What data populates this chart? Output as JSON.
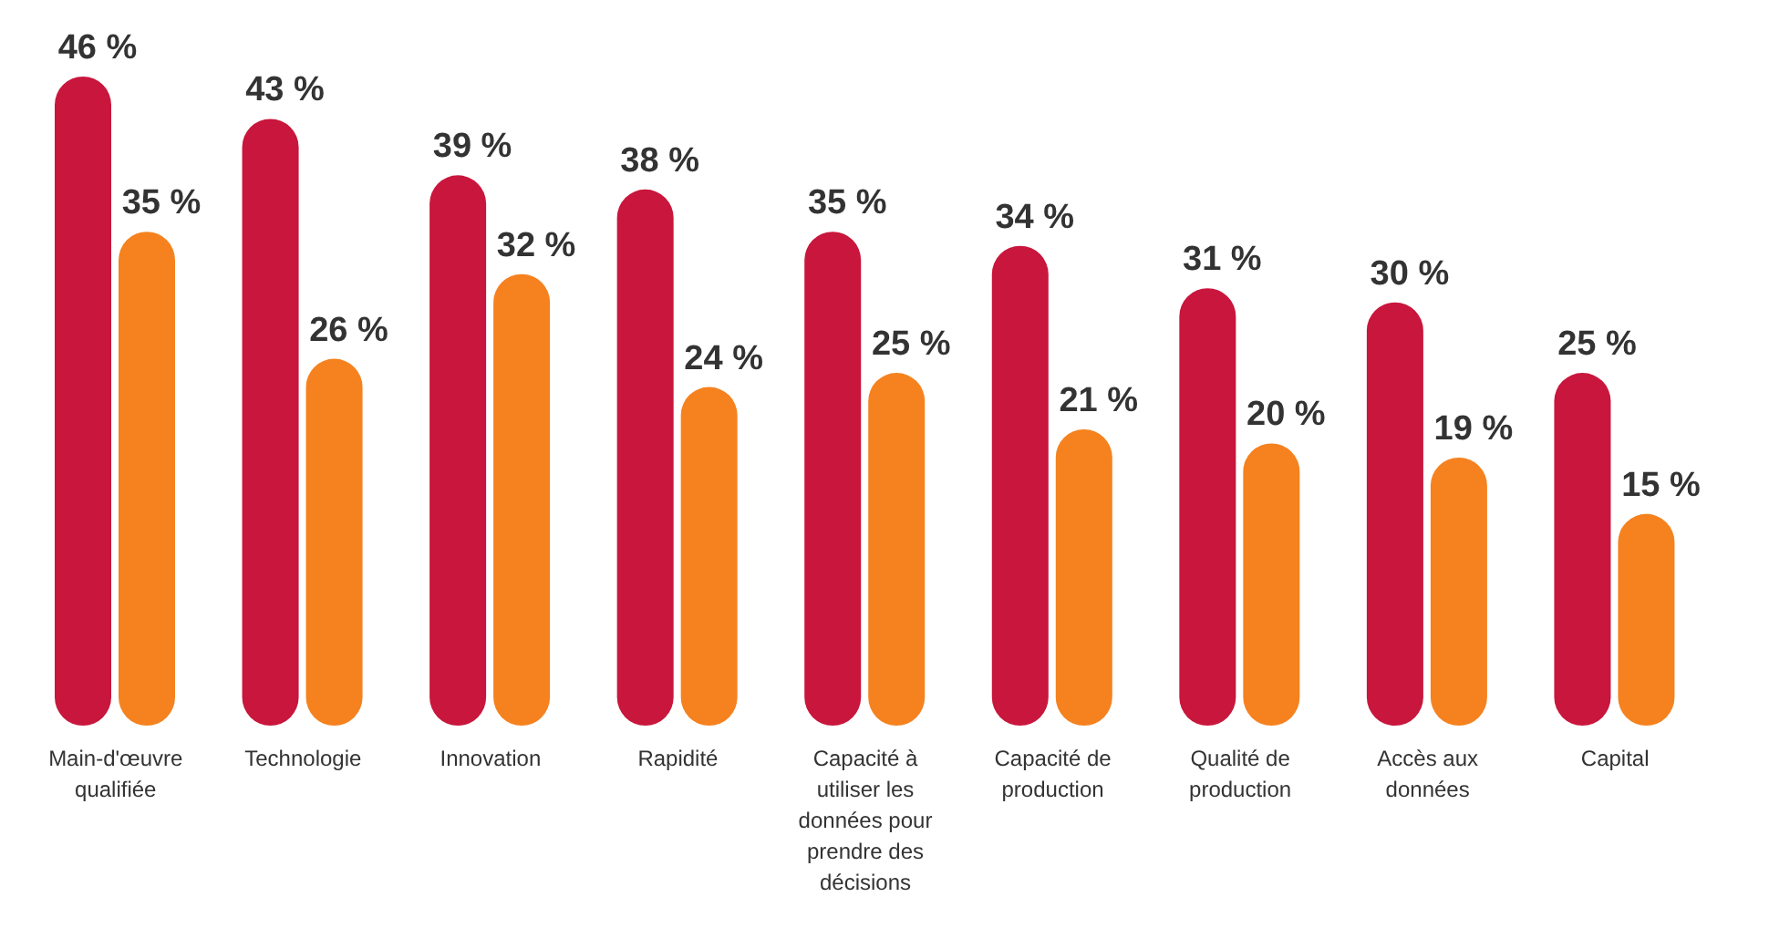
{
  "chart_data": {
    "type": "bar",
    "categories": [
      "Main-d'œuvre qualifiée",
      "Technologie",
      "Innovation",
      "Rapidité",
      "Capacité à utiliser les données pour prendre des décisions",
      "Capacité de production",
      "Qualité de production",
      "Accès aux données",
      "Capital"
    ],
    "series": [
      {
        "color": "#c8163c",
        "values": [
          46,
          43,
          39,
          38,
          35,
          34,
          31,
          30,
          25
        ],
        "value_labels": [
          "46 %",
          "43 %",
          "39 %",
          "38 %",
          "35 %",
          "34 %",
          "31 %",
          "30 %",
          "25 %"
        ]
      },
      {
        "color": "#f5821f",
        "values": [
          35,
          26,
          32,
          24,
          25,
          21,
          20,
          19,
          15
        ],
        "value_labels": [
          "35 %",
          "26 %",
          "32 %",
          "24 %",
          "25 %",
          "21 %",
          "20 %",
          "19 %",
          "15 %"
        ]
      }
    ],
    "tick_labels": "x",
    "grid": false,
    "legend": false
  }
}
